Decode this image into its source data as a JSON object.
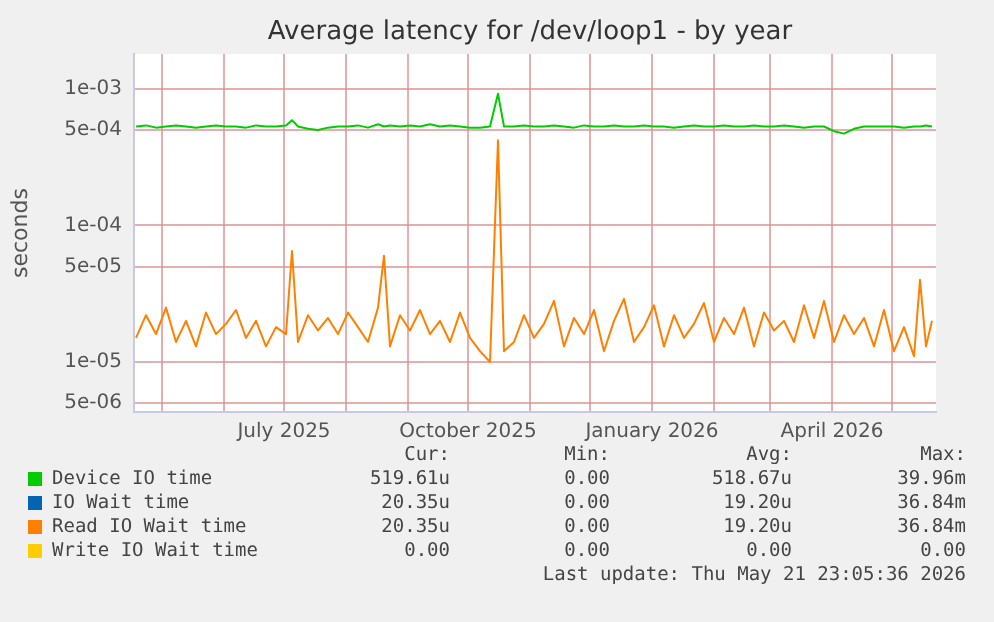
{
  "chart_data": {
    "type": "line",
    "title": "Average latency for /dev/loop1 - by year",
    "ylabel": "seconds",
    "x": [
      "2025-04-18",
      "2025-04-23",
      "2025-04-28",
      "2025-05-03",
      "2025-05-08",
      "2025-05-13",
      "2025-05-18",
      "2025-05-23",
      "2025-05-28",
      "2025-06-02",
      "2025-06-07",
      "2025-06-12",
      "2025-06-17",
      "2025-06-22",
      "2025-06-27",
      "2025-07-02",
      "2025-07-05",
      "2025-07-08",
      "2025-07-13",
      "2025-07-18",
      "2025-07-23",
      "2025-07-28",
      "2025-08-02",
      "2025-08-07",
      "2025-08-12",
      "2025-08-17",
      "2025-08-20",
      "2025-08-23",
      "2025-08-28",
      "2025-09-02",
      "2025-09-07",
      "2025-09-12",
      "2025-09-17",
      "2025-09-22",
      "2025-09-27",
      "2025-10-02",
      "2025-10-07",
      "2025-10-12",
      "2025-10-16",
      "2025-10-19",
      "2025-10-24",
      "2025-10-29",
      "2025-11-03",
      "2025-11-08",
      "2025-11-13",
      "2025-11-18",
      "2025-11-23",
      "2025-11-28",
      "2025-12-03",
      "2025-12-08",
      "2025-12-13",
      "2025-12-18",
      "2025-12-23",
      "2025-12-28",
      "2026-01-02",
      "2026-01-07",
      "2026-01-12",
      "2026-01-17",
      "2026-01-22",
      "2026-01-27",
      "2026-02-01",
      "2026-02-06",
      "2026-02-11",
      "2026-02-16",
      "2026-02-21",
      "2026-02-26",
      "2026-03-03",
      "2026-03-08",
      "2026-03-13",
      "2026-03-18",
      "2026-03-23",
      "2026-03-28",
      "2026-04-02",
      "2026-04-07",
      "2026-04-12",
      "2026-04-17",
      "2026-04-22",
      "2026-04-27",
      "2026-05-02",
      "2026-05-07",
      "2026-05-12",
      "2026-05-15",
      "2026-05-18",
      "2026-05-21"
    ],
    "series": [
      {
        "name": "Device IO time",
        "color": "#00cc00",
        "values": [
          0.00053,
          0.00054,
          0.00052,
          0.00053,
          0.00054,
          0.00053,
          0.00052,
          0.00053,
          0.00054,
          0.00053,
          0.00053,
          0.00052,
          0.00054,
          0.00053,
          0.00053,
          0.00054,
          0.00059,
          0.00053,
          0.00051,
          0.0005,
          0.00052,
          0.00053,
          0.00053,
          0.00054,
          0.00052,
          0.00055,
          0.00053,
          0.00054,
          0.00053,
          0.00054,
          0.00053,
          0.00055,
          0.00053,
          0.00054,
          0.00053,
          0.00052,
          0.00052,
          0.00053,
          0.00092,
          0.00053,
          0.00053,
          0.00054,
          0.00053,
          0.00053,
          0.00054,
          0.00053,
          0.00052,
          0.00054,
          0.00053,
          0.00053,
          0.00054,
          0.00053,
          0.00053,
          0.00054,
          0.00053,
          0.00053,
          0.00052,
          0.00053,
          0.00054,
          0.00053,
          0.00053,
          0.00054,
          0.00053,
          0.00053,
          0.00054,
          0.00053,
          0.00053,
          0.00054,
          0.00053,
          0.00052,
          0.00053,
          0.00053,
          0.00049,
          0.00047,
          0.00051,
          0.00053,
          0.00053,
          0.00053,
          0.00053,
          0.00052,
          0.00053,
          0.00053,
          0.00054,
          0.00053
        ]
      },
      {
        "name": "IO Wait time",
        "color": "#0066b3",
        "values": [
          null,
          null,
          null,
          null,
          null,
          null,
          null,
          null,
          null,
          null,
          null,
          null,
          null,
          null,
          null,
          null,
          null,
          null,
          null,
          null,
          null,
          null,
          null,
          null,
          null,
          null,
          null,
          null,
          null,
          null,
          null,
          null,
          null,
          null,
          null,
          null,
          null,
          null,
          null,
          null,
          null,
          null,
          null,
          null,
          null,
          null,
          null,
          null,
          null,
          null,
          null,
          null,
          null,
          null,
          null,
          null,
          null,
          null,
          null,
          null,
          null,
          null,
          null,
          null,
          null,
          null,
          null,
          null,
          null,
          null,
          null,
          null,
          null,
          null,
          null,
          null,
          null,
          null,
          null,
          null,
          null,
          null,
          null,
          null
        ]
      },
      {
        "name": "Read IO Wait time",
        "color": "#ff8000",
        "values": [
          1.5e-05,
          2.2e-05,
          1.6e-05,
          2.5e-05,
          1.4e-05,
          2e-05,
          1.3e-05,
          2.3e-05,
          1.6e-05,
          1.9e-05,
          2.4e-05,
          1.5e-05,
          2e-05,
          1.3e-05,
          1.8e-05,
          1.6e-05,
          6.5e-05,
          1.4e-05,
          2.2e-05,
          1.7e-05,
          2.1e-05,
          1.6e-05,
          2.3e-05,
          1.8e-05,
          1.4e-05,
          2.5e-05,
          6e-05,
          1.3e-05,
          2.2e-05,
          1.7e-05,
          2.4e-05,
          1.6e-05,
          2e-05,
          1.4e-05,
          2.3e-05,
          1.5e-05,
          1.2e-05,
          1e-05,
          0.00042,
          1.2e-05,
          1.4e-05,
          2.2e-05,
          1.5e-05,
          1.9e-05,
          2.8e-05,
          1.3e-05,
          2.1e-05,
          1.6e-05,
          2.4e-05,
          1.2e-05,
          2e-05,
          2.9e-05,
          1.4e-05,
          1.8e-05,
          2.6e-05,
          1.3e-05,
          2.2e-05,
          1.5e-05,
          1.9e-05,
          2.7e-05,
          1.4e-05,
          2.1e-05,
          1.6e-05,
          2.5e-05,
          1.3e-05,
          2.3e-05,
          1.7e-05,
          2e-05,
          1.4e-05,
          2.6e-05,
          1.5e-05,
          2.8e-05,
          1.4e-05,
          2.2e-05,
          1.6e-05,
          2.1e-05,
          1.3e-05,
          2.4e-05,
          1.2e-05,
          1.8e-05,
          1.1e-05,
          4e-05,
          1.3e-05,
          2e-05
        ]
      },
      {
        "name": "Write IO Wait time",
        "color": "#ffcc00",
        "values": [
          null,
          null,
          null,
          null,
          null,
          null,
          null,
          null,
          null,
          null,
          null,
          null,
          null,
          null,
          null,
          null,
          null,
          null,
          null,
          null,
          null,
          null,
          null,
          null,
          null,
          null,
          null,
          null,
          null,
          null,
          null,
          null,
          null,
          null,
          null,
          null,
          null,
          null,
          null,
          null,
          null,
          null,
          null,
          null,
          null,
          null,
          null,
          null,
          null,
          null,
          null,
          null,
          null,
          null,
          null,
          null,
          null,
          null,
          null,
          null,
          null,
          null,
          null,
          null,
          null,
          null,
          null,
          null,
          null,
          null,
          null,
          null,
          null,
          null,
          null,
          null,
          null,
          null,
          null,
          null,
          null,
          null,
          null,
          null
        ]
      }
    ],
    "log": "y",
    "ylim": [
      4.3e-06,
      0.0018
    ],
    "yticks": [
      {
        "value": 5e-06,
        "label": "5e-06"
      },
      {
        "value": 1e-05,
        "label": "1e-05"
      },
      {
        "value": 5e-05,
        "label": "5e-05"
      },
      {
        "value": 0.0001,
        "label": "1e-04"
      },
      {
        "value": 0.0005,
        "label": "5e-04"
      },
      {
        "value": 0.001,
        "label": "1e-03"
      }
    ],
    "xlim": [
      "2025-04-17",
      "2026-05-23"
    ],
    "xticks": [
      {
        "value": "2025-05-01",
        "label": null
      },
      {
        "value": "2025-06-01",
        "label": null
      },
      {
        "value": "2025-07-01",
        "label": "July 2025"
      },
      {
        "value": "2025-08-01",
        "label": null
      },
      {
        "value": "2025-09-01",
        "label": null
      },
      {
        "value": "2025-10-01",
        "label": "October 2025"
      },
      {
        "value": "2025-11-01",
        "label": null
      },
      {
        "value": "2025-12-01",
        "label": null
      },
      {
        "value": "2026-01-01",
        "label": "January 2026"
      },
      {
        "value": "2026-02-01",
        "label": null
      },
      {
        "value": "2026-03-01",
        "label": null
      },
      {
        "value": "2026-04-01",
        "label": "April 2026"
      },
      {
        "value": "2026-05-01",
        "label": null
      }
    ],
    "grid": true,
    "legend": "bottom",
    "marker": "none",
    "line_style": "solid",
    "annotations": [
      "Cur:",
      "Min:",
      "Avg:",
      "Max:",
      "519.61u",
      "0.00",
      "518.67u",
      "39.96m",
      "20.35u",
      "0.00",
      "19.20u",
      "36.84m",
      "20.35u",
      "0.00",
      "19.20u",
      "36.84m",
      "0.00",
      "0.00",
      "0.00",
      "0.00",
      "Last update: Thu May 21 23:05:36 2026"
    ]
  }
}
